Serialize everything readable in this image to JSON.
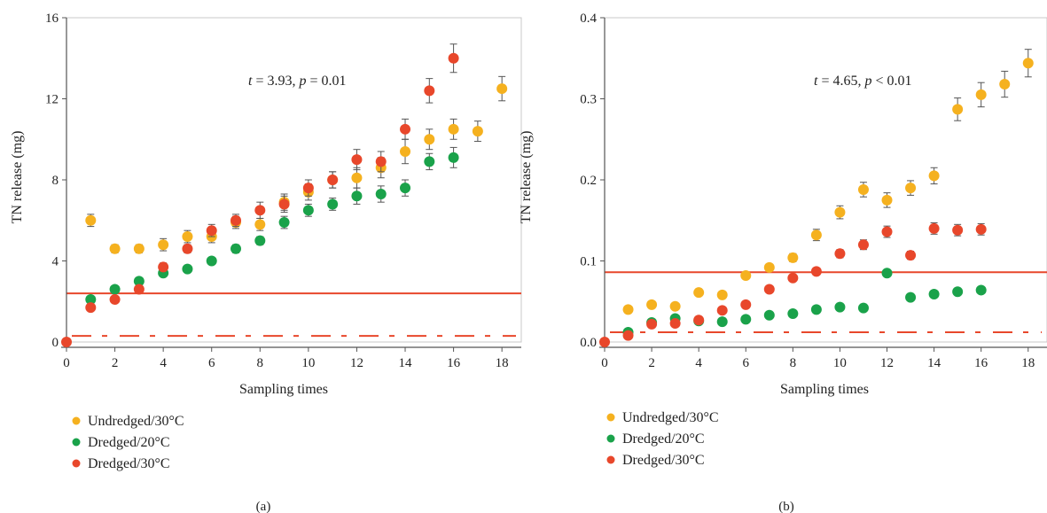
{
  "colors": {
    "undredged_30": "#f5b11f",
    "dredged_20": "#1aa24a",
    "dredged_30": "#e8472b",
    "ref_line": "#e8472b",
    "ref_dash": "#e8472b",
    "error_bar": "#555555",
    "axis": "#555555"
  },
  "chart_data": [
    {
      "type": "scatter",
      "panel_label": "(a)",
      "xlabel": "Sampling times",
      "ylabel": "TN release (mg)",
      "xlim": [
        0,
        18.8
      ],
      "ylim": [
        0,
        16
      ],
      "xticks": [
        0,
        2,
        4,
        6,
        8,
        10,
        12,
        14,
        16,
        18
      ],
      "yticks": [
        0,
        4,
        8,
        12,
        16
      ],
      "annotation": {
        "t": "t",
        "t_val": " = 3.93, ",
        "p": "p",
        "p_val": " = 0.01"
      },
      "reference_line": 2.4,
      "reference_dashed": 0.3,
      "legend": [
        "Undredged/30°C",
        "Dredged/20°C",
        "Dredged/30°C"
      ],
      "series": [
        {
          "name": "Undredged/30°C",
          "x": [
            1,
            2,
            3,
            4,
            5,
            6,
            7,
            8,
            9,
            10,
            11,
            12,
            13,
            14,
            15,
            16,
            17,
            18
          ],
          "y": [
            6.0,
            4.6,
            4.6,
            4.8,
            5.2,
            5.2,
            5.9,
            5.8,
            6.9,
            7.4,
            8.0,
            8.1,
            8.6,
            9.4,
            10.0,
            10.5,
            10.4,
            12.5
          ],
          "err": [
            0.3,
            0.2,
            0.2,
            0.3,
            0.3,
            0.3,
            0.3,
            0.3,
            0.4,
            0.4,
            0.4,
            0.5,
            0.5,
            0.6,
            0.5,
            0.5,
            0.5,
            0.6
          ]
        },
        {
          "name": "Dredged/20°C",
          "x": [
            1,
            2,
            3,
            4,
            5,
            6,
            7,
            8,
            9,
            10,
            11,
            12,
            13,
            14,
            15,
            16
          ],
          "y": [
            2.1,
            2.6,
            3.0,
            3.4,
            3.6,
            4.0,
            4.6,
            5.0,
            5.9,
            6.5,
            6.8,
            7.2,
            7.3,
            7.6,
            8.9,
            9.1
          ],
          "err": [
            0.1,
            0.1,
            0.1,
            0.1,
            0.1,
            0.1,
            0.2,
            0.2,
            0.3,
            0.3,
            0.3,
            0.4,
            0.4,
            0.4,
            0.4,
            0.5
          ]
        },
        {
          "name": "Dredged/30°C",
          "x": [
            0,
            1,
            2,
            3,
            4,
            5,
            6,
            7,
            8,
            9,
            10,
            11,
            12,
            13,
            14,
            15,
            16
          ],
          "y": [
            0.0,
            1.7,
            2.1,
            2.6,
            3.7,
            4.6,
            5.5,
            6.0,
            6.5,
            6.8,
            7.6,
            8.0,
            9.0,
            8.9,
            10.5,
            12.4,
            14.0
          ],
          "err": [
            0,
            0.1,
            0.1,
            0.1,
            0.2,
            0.2,
            0.3,
            0.3,
            0.4,
            0.4,
            0.4,
            0.4,
            0.5,
            0.5,
            0.5,
            0.6,
            0.7
          ]
        }
      ]
    },
    {
      "type": "scatter",
      "panel_label": "(b)",
      "xlabel": "Sampling times",
      "ylabel": "TN release (mg)",
      "xlim": [
        0,
        18.8
      ],
      "ylim": [
        0,
        0.4
      ],
      "xticks": [
        0,
        2,
        4,
        6,
        8,
        10,
        12,
        14,
        16,
        18
      ],
      "yticks": [
        0.0,
        0.1,
        0.2,
        0.3,
        0.4
      ],
      "annotation": {
        "t": "t",
        "t_val": " = 4.65, ",
        "p": "p",
        "p_val": " < 0.01"
      },
      "reference_line": 0.086,
      "reference_dashed": 0.012,
      "legend": [
        "Undredged/30°C",
        "Dredged/20°C",
        "Dredged/30°C"
      ],
      "series": [
        {
          "name": "Undredged/30°C",
          "x": [
            1,
            2,
            3,
            4,
            5,
            6,
            7,
            8,
            9,
            10,
            11,
            12,
            13,
            14,
            15,
            16,
            17,
            18
          ],
          "y": [
            0.04,
            0.046,
            0.044,
            0.061,
            0.058,
            0.082,
            0.092,
            0.104,
            0.132,
            0.16,
            0.188,
            0.175,
            0.19,
            0.205,
            0.287,
            0.305,
            0.318,
            0.344
          ],
          "err": [
            0.003,
            0.003,
            0.003,
            0.004,
            0.004,
            0.004,
            0.004,
            0.005,
            0.007,
            0.008,
            0.009,
            0.009,
            0.009,
            0.01,
            0.014,
            0.015,
            0.016,
            0.017
          ]
        },
        {
          "name": "Dredged/20°C",
          "x": [
            1,
            2,
            3,
            4,
            5,
            6,
            7,
            8,
            9,
            10,
            11,
            12,
            13,
            14,
            15,
            16
          ],
          "y": [
            0.012,
            0.024,
            0.029,
            0.026,
            0.025,
            0.028,
            0.033,
            0.035,
            0.04,
            0.043,
            0.042,
            0.085,
            0.055,
            0.059,
            0.062,
            0.064
          ],
          "err": [
            0.001,
            0.002,
            0.002,
            0.002,
            0.002,
            0.002,
            0.002,
            0.002,
            0.002,
            0.003,
            0.003,
            0.004,
            0.003,
            0.003,
            0.003,
            0.003
          ]
        },
        {
          "name": "Dredged/30°C",
          "x": [
            0,
            1,
            2,
            3,
            4,
            5,
            6,
            7,
            8,
            9,
            10,
            11,
            12,
            13,
            14,
            15,
            16
          ],
          "y": [
            0.0,
            0.008,
            0.022,
            0.023,
            0.027,
            0.039,
            0.046,
            0.065,
            0.079,
            0.087,
            0.109,
            0.12,
            0.136,
            0.107,
            0.14,
            0.138,
            0.139
          ],
          "err": [
            0,
            0.001,
            0.002,
            0.002,
            0.002,
            0.003,
            0.003,
            0.004,
            0.004,
            0.004,
            0.005,
            0.006,
            0.007,
            0.005,
            0.007,
            0.007,
            0.007
          ]
        }
      ]
    }
  ]
}
